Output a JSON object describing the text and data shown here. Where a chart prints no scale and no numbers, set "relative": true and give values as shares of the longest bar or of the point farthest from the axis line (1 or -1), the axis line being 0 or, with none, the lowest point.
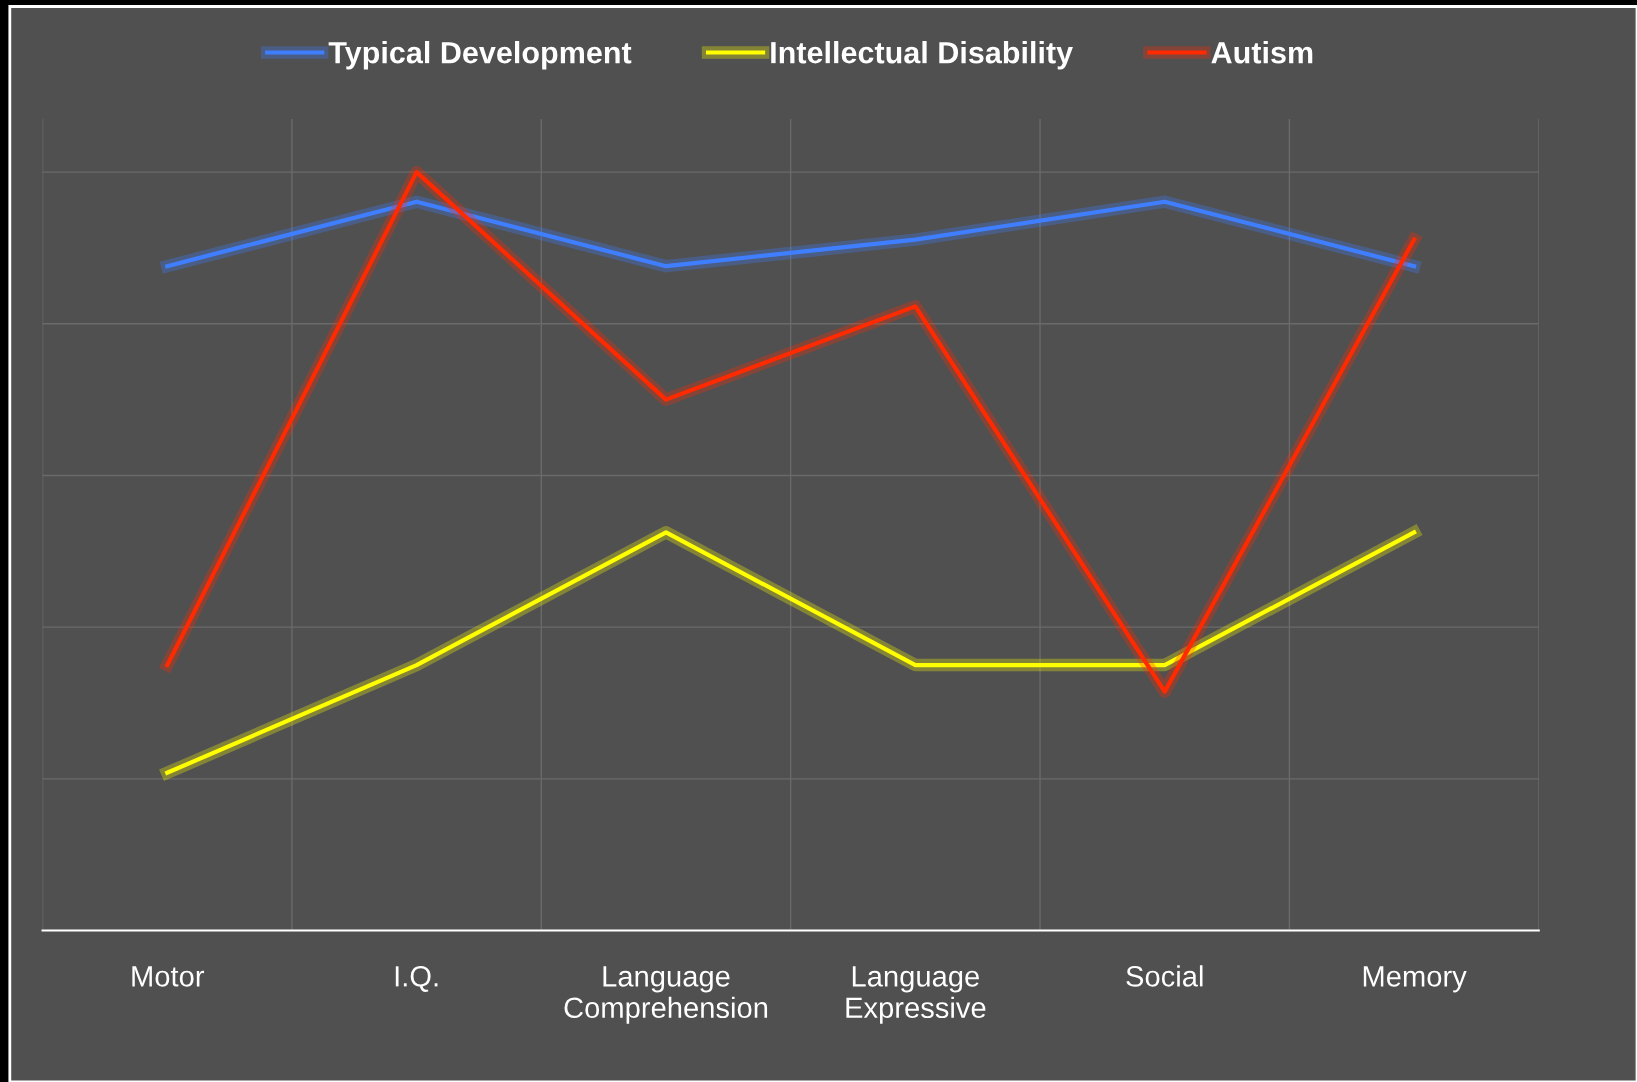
{
  "chart_data": {
    "type": "line",
    "relative": true,
    "categories": [
      "Motor",
      "I.Q.",
      "Language\nComprehension",
      "Language\nExpressive",
      "Social",
      "Memory"
    ],
    "series": [
      {
        "name": "Typical Development",
        "color": "#3f7fff",
        "values": [
          0.876,
          0.961,
          0.876,
          0.911,
          0.961,
          0.876
        ]
      },
      {
        "name": "Intellectual Disability",
        "color": "#ffff00",
        "values": [
          0.208,
          0.35,
          0.525,
          0.35,
          0.35,
          0.525
        ]
      },
      {
        "name": "Autism",
        "color": "#ff2a00",
        "values": [
          0.35,
          1,
          0.7,
          0.823,
          0.315,
          0.911
        ]
      }
    ],
    "grid": true,
    "legend": "top",
    "marker": "none",
    "line_style": "solid"
  }
}
